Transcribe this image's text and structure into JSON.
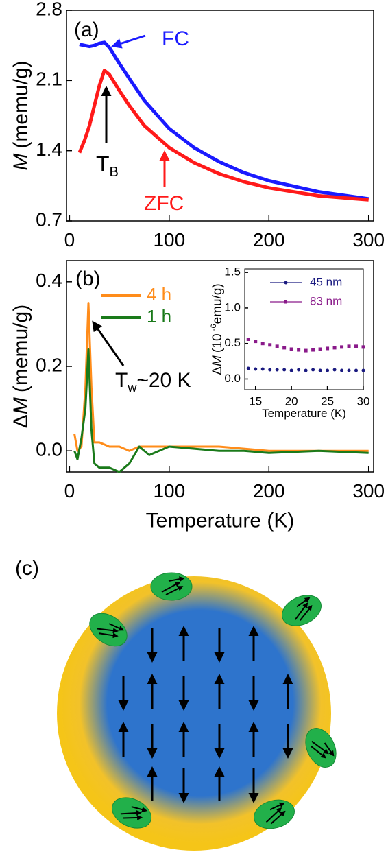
{
  "chart_data": [
    {
      "type": "line",
      "y_label": [
        "M",
        "(memu/g)"
      ],
      "x": [
        10,
        15,
        20,
        25,
        30,
        35,
        40,
        50,
        60,
        75,
        100,
        125,
        150,
        175,
        200,
        250,
        300
      ],
      "series": [
        {
          "name": "FC",
          "color": "#1a1aff",
          "values": [
            2.46,
            2.45,
            2.44,
            2.45,
            2.47,
            2.48,
            2.43,
            2.27,
            2.12,
            1.9,
            1.62,
            1.43,
            1.29,
            1.18,
            1.1,
            0.99,
            0.92
          ]
        },
        {
          "name": "ZFC",
          "color": "#ff1a1a",
          "values": [
            1.38,
            1.5,
            1.65,
            1.85,
            2.05,
            2.2,
            2.16,
            2.0,
            1.85,
            1.65,
            1.43,
            1.28,
            1.17,
            1.09,
            1.03,
            0.95,
            0.91
          ]
        }
      ],
      "xlim": [
        -3,
        305
      ],
      "xticks": [
        0,
        100,
        200,
        300
      ],
      "ylim": [
        0.7,
        2.8
      ],
      "yticks": [
        0.7,
        1.4,
        2.1,
        2.8
      ],
      "annotations": [
        {
          "text": "(a)"
        },
        {
          "text": "T",
          "sub": "B"
        }
      ]
    },
    {
      "type": "line",
      "y_label": [
        "Δ",
        "M",
        "(memu/g)"
      ],
      "x_label": "Temperature (K)",
      "x": [
        5,
        8,
        12,
        16,
        19,
        22,
        25,
        30,
        40,
        50,
        60,
        70,
        80,
        100,
        125,
        150,
        175,
        200,
        250,
        300
      ],
      "series": [
        {
          "name": "4 h",
          "color": "#ff8c1a",
          "values": [
            0.04,
            0.0,
            0.01,
            0.15,
            0.35,
            0.15,
            0.02,
            0.02,
            0.01,
            0.01,
            0.0,
            0.01,
            0.01,
            0.01,
            0.01,
            0.01,
            0.005,
            0.0,
            0.0,
            0.0
          ]
        },
        {
          "name": "1 h",
          "color": "#1a7a1a",
          "values": [
            0.0,
            -0.02,
            0.03,
            0.1,
            0.24,
            0.05,
            -0.03,
            -0.04,
            -0.04,
            -0.05,
            -0.03,
            0.01,
            -0.01,
            0.01,
            0.005,
            0.0,
            0.0,
            -0.005,
            0.0,
            -0.005
          ]
        }
      ],
      "xlim": [
        -3,
        305
      ],
      "xticks": [
        0,
        100,
        200,
        300
      ],
      "ylim": [
        -0.05,
        0.45
      ],
      "yticks": [
        {
          "value": 0,
          "label": "0.0"
        },
        0.2,
        0.4
      ],
      "annotations": [
        {
          "text": "(b)"
        },
        {
          "text": "T",
          "sub": "w",
          "after": "~20 K"
        }
      ]
    },
    {
      "type": "scatter",
      "y_label": [
        "Δ",
        "M",
        "(10",
        "-6",
        "emu/g)"
      ],
      "x_label": "Temperature (K)",
      "x": [
        14,
        15,
        16,
        17,
        18,
        19,
        20,
        21,
        22,
        23,
        24,
        25,
        26,
        27,
        28,
        29,
        30
      ],
      "series": [
        {
          "name": "45 nm",
          "color": "#1a1a80",
          "marker": "circle",
          "values": [
            0.15,
            0.14,
            0.14,
            0.13,
            0.13,
            0.13,
            0.12,
            0.13,
            0.12,
            0.13,
            0.12,
            0.12,
            0.13,
            0.12,
            0.12,
            0.12,
            0.12
          ]
        },
        {
          "name": "83 nm",
          "color": "#8a1a8a",
          "marker": "square",
          "values": [
            0.56,
            0.53,
            0.5,
            0.48,
            0.46,
            0.44,
            0.42,
            0.41,
            0.4,
            0.41,
            0.42,
            0.43,
            0.44,
            0.45,
            0.46,
            0.46,
            0.45
          ]
        }
      ],
      "xlim": [
        13.5,
        30
      ],
      "xticks": [
        15,
        20,
        25,
        30
      ],
      "ylim": [
        -0.15,
        1.55
      ],
      "yticks": [
        {
          "value": 0,
          "label": "0.0"
        },
        0.5,
        {
          "value": 1,
          "label": "1.0"
        },
        1.5
      ]
    }
  ],
  "diagram": {
    "label": "(c)"
  }
}
